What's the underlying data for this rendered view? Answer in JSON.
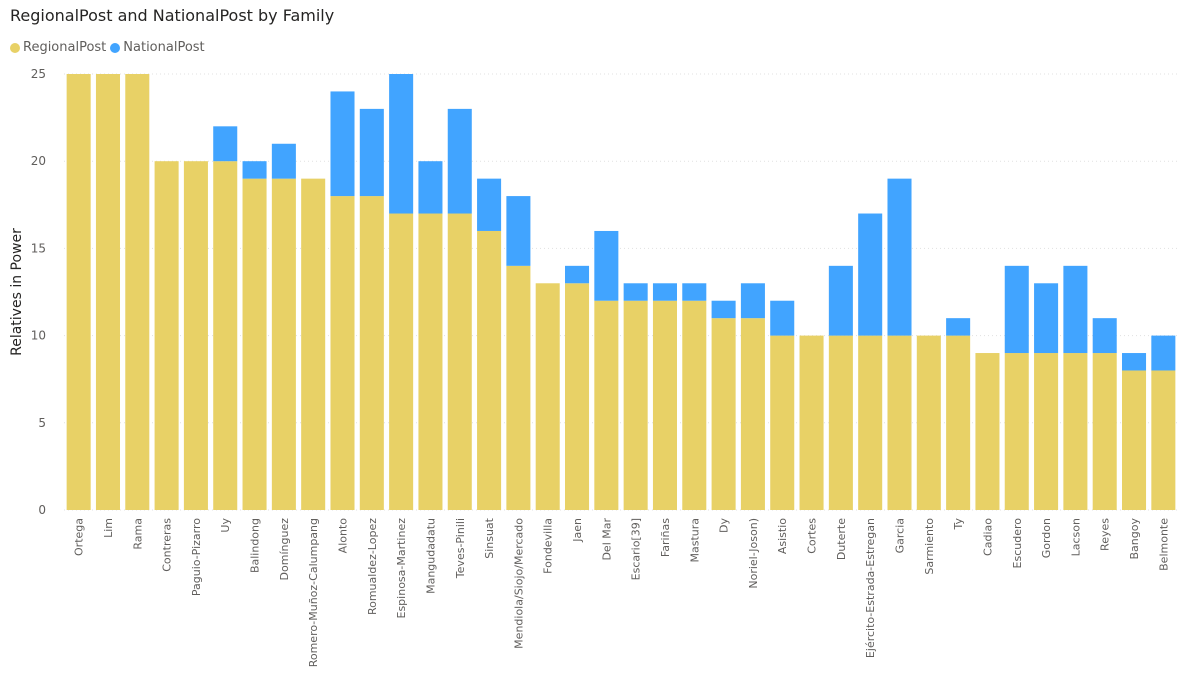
{
  "chart_data": {
    "type": "bar",
    "stacked": true,
    "title": "RegionalPost and NationalPost by Family",
    "xlabel": "",
    "ylabel": "Relatives in Power",
    "ylim": [
      0,
      25
    ],
    "yticks": [
      0,
      5,
      10,
      15,
      20,
      25
    ],
    "grid": true,
    "legend_position": "top-left",
    "categories": [
      "Ortega",
      "Lim",
      "Rama",
      "Contreras",
      "Paguio-Pizarro",
      "Uy",
      "Balindong",
      "Domínguez",
      "Romero-Muñoz-Calumpang",
      "Alonto",
      "Romualdez-Lopez",
      "Espinosa-Martinez",
      "Mangudadatu",
      "Teves-Pinili",
      "Sinsuat",
      "Mendiola/Siojo/Mercado",
      "Fondevilla",
      "Jaen",
      "Del Mar",
      "Escario[39]",
      "Fariñas",
      "Mastura",
      "Dy",
      "Noriel-Joson)",
      "Asistio",
      "Cortes",
      "Duterte",
      "Ejército-Estrada-Estregan",
      "Garcia",
      "Sarmiento",
      "Ty",
      "Cadiao",
      "Escudero",
      "Gordon",
      "Lacson",
      "Reyes",
      "Bangoy",
      "Belmonte"
    ],
    "series": [
      {
        "name": "RegionalPost",
        "color": "#E8D166",
        "values": [
          25,
          25,
          25,
          20,
          20,
          20,
          19,
          19,
          19,
          18,
          18,
          17,
          17,
          17,
          16,
          14,
          13,
          13,
          12,
          12,
          12,
          12,
          11,
          11,
          10,
          10,
          10,
          10,
          10,
          10,
          10,
          9,
          9,
          9,
          9,
          9,
          8,
          8
        ]
      },
      {
        "name": "NationalPost",
        "color": "#41A4FF",
        "values": [
          0,
          0,
          0,
          0,
          0,
          2,
          1,
          2,
          0,
          6,
          5,
          8,
          3,
          6,
          3,
          4,
          0,
          1,
          4,
          1,
          1,
          1,
          1,
          2,
          2,
          0,
          4,
          7,
          9,
          0,
          1,
          0,
          5,
          4,
          5,
          2,
          1,
          2
        ]
      }
    ]
  }
}
